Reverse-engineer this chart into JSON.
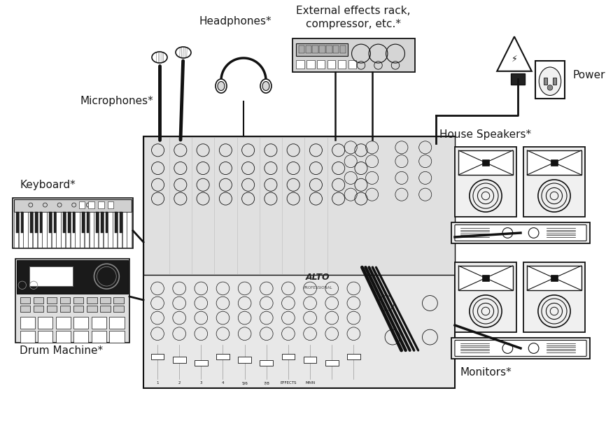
{
  "bg_color": "#ffffff",
  "labels": {
    "microphones": "Microphones*",
    "headphones": "Headphones*",
    "external_effects": "External effects rack,\ncompressor, etc.*",
    "power": "Power",
    "keyboard": "Keyboard*",
    "drum_machine": "Drum Machine*",
    "house_speakers": "House Speakers*",
    "monitors": "Monitors*"
  },
  "label_color": "#1a1a1a",
  "accent_color": "#cc6600",
  "line_color": "#111111",
  "alto_color": "#222222"
}
